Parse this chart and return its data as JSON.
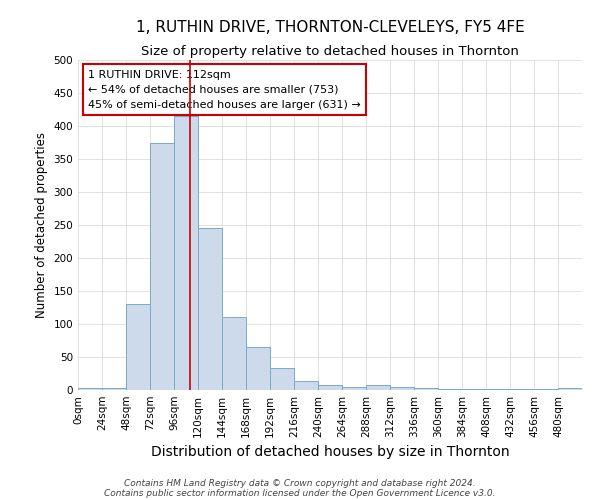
{
  "title": "1, RUTHIN DRIVE, THORNTON-CLEVELEYS, FY5 4FE",
  "subtitle": "Size of property relative to detached houses in Thornton",
  "xlabel": "Distribution of detached houses by size in Thornton",
  "ylabel": "Number of detached properties",
  "footnote1": "Contains HM Land Registry data © Crown copyright and database right 2024.",
  "footnote2": "Contains public sector information licensed under the Open Government Licence v3.0.",
  "bin_labels": [
    "0sqm",
    "24sqm",
    "48sqm",
    "72sqm",
    "96sqm",
    "120sqm",
    "144sqm",
    "168sqm",
    "192sqm",
    "216sqm",
    "240sqm",
    "264sqm",
    "288sqm",
    "312sqm",
    "336sqm",
    "360sqm",
    "384sqm",
    "408sqm",
    "432sqm",
    "456sqm",
    "480sqm"
  ],
  "bin_values": [
    3,
    3,
    130,
    375,
    415,
    245,
    110,
    65,
    33,
    14,
    8,
    4,
    7,
    5,
    3,
    2,
    2,
    1,
    1,
    1,
    3
  ],
  "bar_color": "#ccdaeb",
  "bar_edge_color": "#7aaac8",
  "ylim": [
    0,
    500
  ],
  "yticks": [
    0,
    50,
    100,
    150,
    200,
    250,
    300,
    350,
    400,
    450,
    500
  ],
  "property_size": 112,
  "vline_color": "#cc0000",
  "annotation_text": "1 RUTHIN DRIVE: 112sqm\n← 54% of detached houses are smaller (753)\n45% of semi-detached houses are larger (631) →",
  "annotation_box_facecolor": "#ffffff",
  "annotation_box_edgecolor": "#cc0000",
  "background_color": "#ffffff",
  "grid_color": "#dddddd",
  "title_fontsize": 11,
  "subtitle_fontsize": 9.5,
  "xlabel_fontsize": 10,
  "ylabel_fontsize": 8.5,
  "tick_fontsize": 7.5,
  "annotation_fontsize": 8,
  "footnote_fontsize": 6.5
}
